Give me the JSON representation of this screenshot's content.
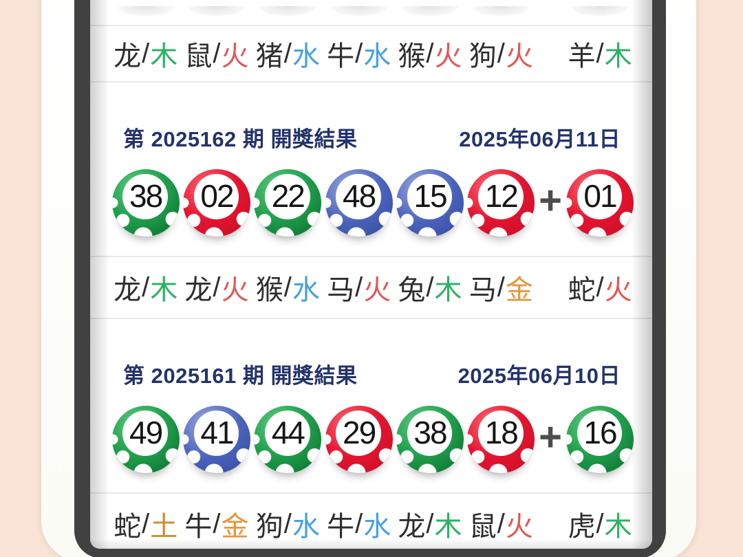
{
  "colors": {
    "header_text": "#24336b",
    "zodiac_text": "#2e2e2e",
    "plus_sign": "#4d4d4d",
    "divider": "#e9e9e9",
    "frame_bg": "#fbfbf6",
    "bezel": "#414141",
    "page_bg": "#f8e3d4",
    "ball_colors": {
      "green": "#18a046",
      "red": "#e11430",
      "blue": "#4b5cb8"
    },
    "element_colors": {
      "木": "#2fb065",
      "火": "#e25858",
      "水": "#45a0e6",
      "金": "#e6953a",
      "土": "#cf8c2e"
    }
  },
  "previous_draw_partial": {
    "zodiac": [
      {
        "animal": "龙",
        "element": "木"
      },
      {
        "animal": "鼠",
        "element": "火"
      },
      {
        "animal": "猪",
        "element": "水"
      },
      {
        "animal": "牛",
        "element": "水"
      },
      {
        "animal": "猴",
        "element": "火"
      },
      {
        "animal": "狗",
        "element": "火"
      },
      {
        "animal": "羊",
        "element": "木"
      }
    ]
  },
  "draws": [
    {
      "title": "第 2025162 期 開獎結果",
      "date": "2025年06月11日",
      "plus_sign": "+",
      "balls": [
        {
          "number": "38",
          "color": "green"
        },
        {
          "number": "02",
          "color": "red"
        },
        {
          "number": "22",
          "color": "green"
        },
        {
          "number": "48",
          "color": "blue"
        },
        {
          "number": "15",
          "color": "blue"
        },
        {
          "number": "12",
          "color": "red"
        }
      ],
      "special_ball": {
        "number": "01",
        "color": "red"
      },
      "zodiac": [
        {
          "animal": "龙",
          "element": "木"
        },
        {
          "animal": "龙",
          "element": "火"
        },
        {
          "animal": "猴",
          "element": "水"
        },
        {
          "animal": "马",
          "element": "火"
        },
        {
          "animal": "兔",
          "element": "木"
        },
        {
          "animal": "马",
          "element": "金"
        },
        {
          "animal": "蛇",
          "element": "火"
        }
      ]
    },
    {
      "title": "第 2025161 期 開獎結果",
      "date": "2025年06月10日",
      "plus_sign": "+",
      "balls": [
        {
          "number": "49",
          "color": "green"
        },
        {
          "number": "41",
          "color": "blue"
        },
        {
          "number": "44",
          "color": "green"
        },
        {
          "number": "29",
          "color": "red"
        },
        {
          "number": "38",
          "color": "green"
        },
        {
          "number": "18",
          "color": "red"
        }
      ],
      "special_ball": {
        "number": "16",
        "color": "green"
      },
      "zodiac": [
        {
          "animal": "蛇",
          "element": "土"
        },
        {
          "animal": "牛",
          "element": "金"
        },
        {
          "animal": "狗",
          "element": "水"
        },
        {
          "animal": "牛",
          "element": "水"
        },
        {
          "animal": "龙",
          "element": "木"
        },
        {
          "animal": "鼠",
          "element": "火"
        },
        {
          "animal": "虎",
          "element": "木"
        }
      ]
    }
  ]
}
